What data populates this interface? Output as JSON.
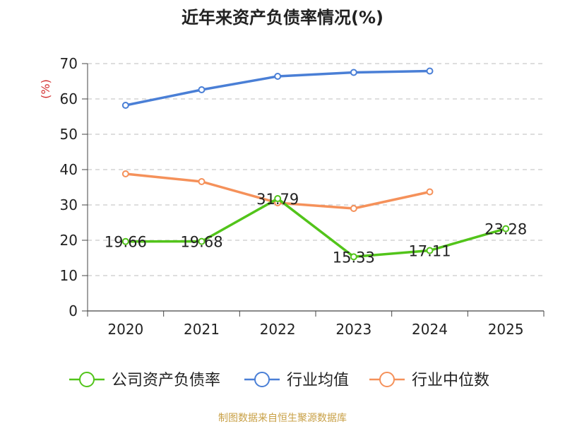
{
  "chart_data": {
    "type": "line",
    "title": "近年来资产负债率情况(%)",
    "ylabel": "(%)",
    "xlabel": "",
    "categories": [
      "2020",
      "2021",
      "2022",
      "2023",
      "2024",
      "2025"
    ],
    "ylim": [
      0,
      70
    ],
    "yticks": [
      0,
      10,
      20,
      30,
      40,
      50,
      60,
      70
    ],
    "grid": true,
    "legend_position": "bottom",
    "series": [
      {
        "name": "公司资产负债率",
        "color": "#52c41a",
        "values": [
          19.66,
          19.68,
          31.79,
          15.33,
          17.11,
          23.28
        ],
        "labels": [
          "19.66",
          "19.68",
          "31.79",
          "15.33",
          "17.11",
          "23.28"
        ],
        "show_labels": true
      },
      {
        "name": "行业均值",
        "color": "#4a7fd6",
        "values": [
          58.2,
          62.6,
          66.4,
          67.5,
          67.9,
          null
        ],
        "show_labels": false
      },
      {
        "name": "行业中位数",
        "color": "#f5915a",
        "values": [
          38.8,
          36.6,
          30.6,
          29.0,
          33.7,
          null
        ],
        "show_labels": false
      }
    ],
    "source_note": "制图数据来自恒生聚源数据库"
  },
  "colors": {
    "grid": "#bdbdbd",
    "axis": "#444444",
    "ylabel": "#d32f2f",
    "source_note": "#c8a046",
    "text": "#222222"
  }
}
